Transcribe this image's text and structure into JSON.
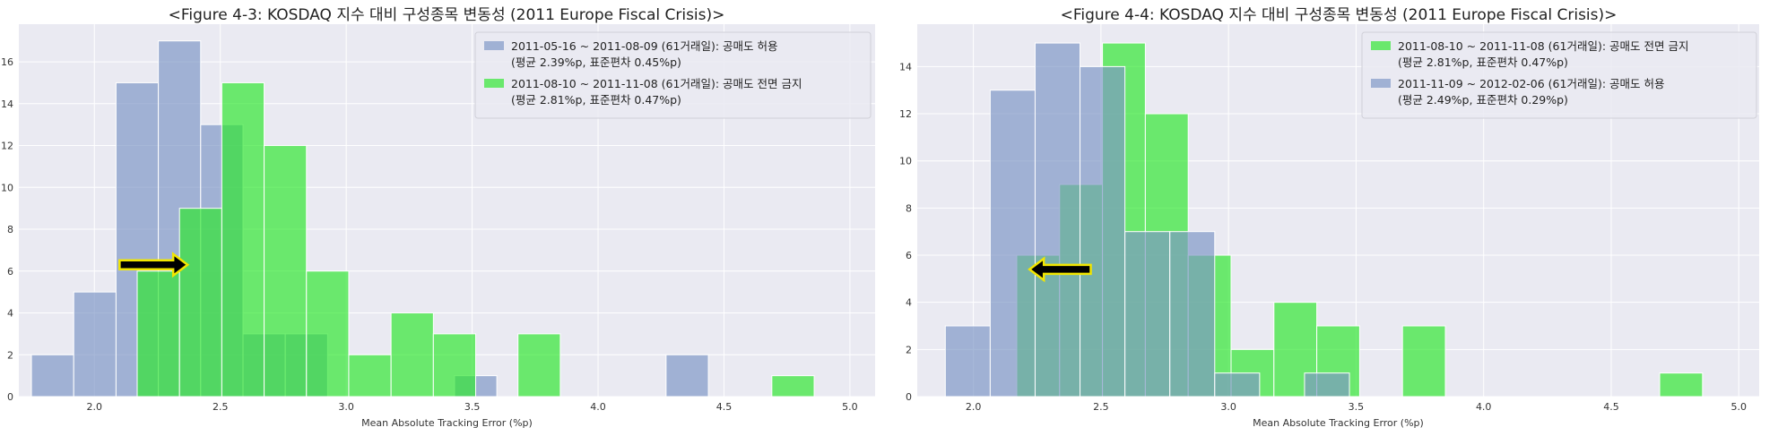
{
  "chart_data": [
    {
      "type": "bar",
      "title": "<Figure 4-3: KOSDAQ 지수 대비 구성종목 변동성 (2011 Europe Fiscal Crisis)>",
      "xlabel": "Mean Absolute Tracking Error (%p)",
      "ylabel": "",
      "xlim": [
        1.7,
        5.1
      ],
      "ylim": [
        0,
        17.8
      ],
      "xticks": [
        "2.0",
        "2.5",
        "3.0",
        "3.5",
        "4.0",
        "4.5",
        "5.0"
      ],
      "xtick_values": [
        2.0,
        2.5,
        3.0,
        3.5,
        4.0,
        4.5,
        5.0
      ],
      "yticks": [
        "0",
        "2",
        "4",
        "6",
        "8",
        "10",
        "12",
        "14",
        "16"
      ],
      "ytick_values": [
        0,
        2,
        4,
        6,
        8,
        10,
        12,
        14,
        16
      ],
      "grid": true,
      "legend_position": "top-right",
      "arrow": {
        "direction": "right",
        "x": [
          2.1,
          2.37
        ],
        "y": 6.3
      },
      "series": [
        {
          "name": "2011-05-16 ~ 2011-08-09 (61거래일): 공매도 허용",
          "name_line2": "(평균 2.39%p, 표준편차 0.45%p)",
          "color": "#7e97c6",
          "bin_edges": [
            1.75,
            1.918,
            2.086,
            2.254,
            2.422,
            2.59,
            2.758,
            2.926,
            3.094,
            3.262,
            3.43,
            3.598,
            3.766,
            3.934,
            4.102,
            4.27,
            4.438
          ],
          "values": [
            2,
            5,
            15,
            17,
            13,
            3,
            3,
            0,
            0,
            0,
            1,
            0,
            0,
            0,
            0,
            2
          ]
        },
        {
          "name": "2011-08-10 ~ 2011-11-08 (61거래일): 공매도 전면 금지",
          "name_line2": "(평균 2.81%p, 표준편차 0.47%p)",
          "color": "#2ee82e",
          "bin_edges": [
            2.17,
            2.338,
            2.506,
            2.674,
            2.842,
            3.01,
            3.178,
            3.346,
            3.514,
            3.682,
            3.85,
            4.018,
            4.186,
            4.354,
            4.522,
            4.69,
            4.858
          ],
          "values": [
            6,
            9,
            15,
            12,
            6,
            2,
            4,
            3,
            0,
            3,
            0,
            0,
            0,
            0,
            0,
            1
          ]
        }
      ]
    },
    {
      "type": "bar",
      "title": "<Figure 4-4: KOSDAQ 지수 대비 구성종목 변동성 (2011 Europe Fiscal Crisis)>",
      "xlabel": "Mean Absolute Tracking Error (%p)",
      "ylabel": "",
      "xlim": [
        1.78,
        5.08
      ],
      "ylim": [
        0,
        15.8
      ],
      "xticks": [
        "2.0",
        "2.5",
        "3.0",
        "3.5",
        "4.0",
        "4.5",
        "5.0"
      ],
      "xtick_values": [
        2.0,
        2.5,
        3.0,
        3.5,
        4.0,
        4.5,
        5.0
      ],
      "yticks": [
        "0",
        "2",
        "4",
        "6",
        "8",
        "10",
        "12",
        "14"
      ],
      "ytick_values": [
        0,
        2,
        4,
        6,
        8,
        10,
        12,
        14
      ],
      "grid": true,
      "legend_position": "top-right",
      "arrow": {
        "direction": "left",
        "x": [
          2.46,
          2.22
        ],
        "y": 5.4
      },
      "series": [
        {
          "name": "2011-08-10 ~ 2011-11-08 (61거래일): 공매도 전면 금지",
          "name_line2": "(평균 2.81%p, 표준편차 0.47%p)",
          "color": "#2ee82e",
          "bin_edges": [
            2.17,
            2.338,
            2.506,
            2.674,
            2.842,
            3.01,
            3.178,
            3.346,
            3.514,
            3.682,
            3.85,
            4.018,
            4.186,
            4.354,
            4.522,
            4.69,
            4.858
          ],
          "values": [
            6,
            9,
            15,
            12,
            6,
            2,
            4,
            3,
            0,
            3,
            0,
            0,
            0,
            0,
            0,
            1
          ]
        },
        {
          "name": "2011-11-09 ~ 2012-02-06 (61거래일): 공매도 허용",
          "name_line2": "(평균 2.49%p, 표준편차 0.29%p)",
          "color": "#7e97c6",
          "bin_edges": [
            1.89,
            2.066,
            2.242,
            2.418,
            2.594,
            2.77,
            2.946,
            3.122,
            3.298,
            3.474
          ],
          "values": [
            3,
            13,
            15,
            14,
            7,
            7,
            1,
            0,
            1
          ]
        }
      ]
    }
  ]
}
